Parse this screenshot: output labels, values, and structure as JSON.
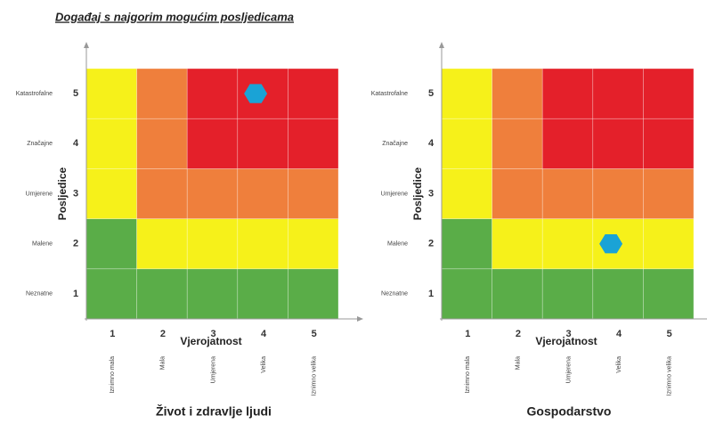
{
  "title": "Događaj s najgorim mogućim posljedicama",
  "y_label": "Posljedice",
  "x_label": "Vjerojatnost",
  "consequences": [
    {
      "name": "Neznatne",
      "number": 1
    },
    {
      "name": "Malene",
      "number": 2
    },
    {
      "name": "Umjerene",
      "number": 3
    },
    {
      "name": "Značajne",
      "number": 4
    },
    {
      "name": "Katastrofalne",
      "number": 5
    }
  ],
  "likelihoods": [
    {
      "name": "Iznimno mala",
      "number": 1
    },
    {
      "name": "Mala",
      "number": 2
    },
    {
      "name": "Umjerena",
      "number": 3
    },
    {
      "name": "Velika",
      "number": 4
    },
    {
      "name": "Iznimno velika",
      "number": 5
    }
  ],
  "cells": [
    [
      "#5aad48",
      "#5aad48",
      "#5aad48",
      "#5aad48",
      "#5aad48"
    ],
    [
      "#5aad48",
      "#f6f11a",
      "#f6f11a",
      "#f6f11a",
      "#f6f11a"
    ],
    [
      "#f6f11a",
      "#ef7f3c",
      "#ef7f3c",
      "#ef7f3c",
      "#ef7f3c"
    ],
    [
      "#f6f11a",
      "#ef7f3c",
      "#e4202a",
      "#e4202a",
      "#e4202a"
    ],
    [
      "#f6f11a",
      "#ef7f3c",
      "#e4202a",
      "#e4202a",
      "#e4202a"
    ]
  ],
  "marker_color": "#1aa3d6",
  "matrices": [
    {
      "caption": "Život i zdravlje ljudi",
      "marker": {
        "likelihood": 4,
        "consequence": 5
      }
    },
    {
      "caption": "Gospodarstvo",
      "marker": {
        "likelihood": 4,
        "consequence": 2
      }
    }
  ]
}
